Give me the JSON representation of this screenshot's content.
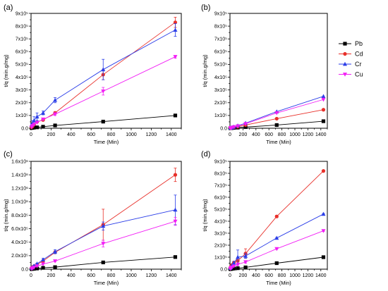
{
  "colors": {
    "Pb": "#000000",
    "Cd": "#e8302a",
    "Cr": "#2b3ee8",
    "Cu": "#f21ef5"
  },
  "legend": {
    "entries": [
      "Pb",
      "Cd",
      "Cr",
      "Cu"
    ],
    "placement": "right of panel (b)"
  },
  "chart_data": [
    {
      "panel": "(a)",
      "type": "line",
      "xlabel": "Time (Min)",
      "ylabel": "t/q (min.g/mg)",
      "xlim": [
        0,
        1500
      ],
      "ylim": [
        0,
        900000
      ],
      "xticks": [
        "0",
        "200",
        "400",
        "600",
        "800",
        "1000",
        "1200",
        "1400"
      ],
      "yticks": [
        "0.0",
        "1x10⁵",
        "2x10⁵",
        "3x10⁵",
        "4x10⁵",
        "5x10⁵",
        "6x10⁵",
        "7x10⁵",
        "8x10⁵",
        "9x10⁵"
      ],
      "x": [
        5,
        15,
        30,
        60,
        120,
        240,
        720,
        1440
      ],
      "series": [
        {
          "name": "Pb",
          "marker": "square",
          "values": [
            2000,
            3000,
            5000,
            7000,
            12000,
            22000,
            52000,
            100000
          ],
          "errors": [
            0,
            0,
            0,
            0,
            0,
            0,
            0,
            0
          ]
        },
        {
          "name": "Cd",
          "marker": "circle",
          "values": [
            8000,
            15000,
            30000,
            50000,
            65000,
            120000,
            420000,
            830000
          ],
          "errors": [
            0,
            0,
            0,
            0,
            0,
            10000,
            40000,
            40000
          ]
        },
        {
          "name": "Cr",
          "marker": "triangle-up",
          "values": [
            25000,
            40000,
            60000,
            90000,
            120000,
            220000,
            460000,
            770000
          ],
          "errors": [
            10000,
            20000,
            30000,
            30000,
            15000,
            20000,
            80000,
            50000
          ]
        },
        {
          "name": "Cu",
          "marker": "triangle-down",
          "values": [
            10000,
            20000,
            30000,
            45000,
            70000,
            110000,
            290000,
            560000
          ],
          "errors": [
            0,
            0,
            0,
            0,
            0,
            10000,
            30000,
            10000
          ]
        }
      ]
    },
    {
      "panel": "(b)",
      "type": "line",
      "xlabel": "Time (Min)",
      "ylabel": "t/q (min.g/mg)",
      "xlim": [
        0,
        1500
      ],
      "ylim": [
        0,
        900000
      ],
      "xticks": [
        "0",
        "200",
        "400",
        "600",
        "800",
        "1000",
        "1200",
        "1400"
      ],
      "yticks": [
        "0.0",
        "1x10⁵",
        "2x10⁵",
        "3x10⁵",
        "4x10⁵",
        "5x10⁵",
        "6x10⁵",
        "7x10⁵",
        "8x10⁵",
        "9x10⁵"
      ],
      "x": [
        5,
        15,
        30,
        60,
        120,
        240,
        720,
        1440
      ],
      "series": [
        {
          "name": "Pb",
          "marker": "square",
          "values": [
            500,
            800,
            1500,
            3000,
            5000,
            9000,
            25000,
            55000
          ],
          "errors": [
            0,
            0,
            0,
            0,
            0,
            0,
            0,
            0
          ]
        },
        {
          "name": "Cd",
          "marker": "circle",
          "values": [
            1000,
            2000,
            4000,
            7000,
            12000,
            25000,
            75000,
            145000
          ],
          "errors": [
            0,
            0,
            0,
            0,
            0,
            0,
            0,
            0
          ]
        },
        {
          "name": "Cr",
          "marker": "triangle-up",
          "values": [
            1500,
            3000,
            6000,
            11000,
            20000,
            40000,
            130000,
            250000
          ],
          "errors": [
            0,
            0,
            0,
            0,
            0,
            0,
            0,
            0
          ]
        },
        {
          "name": "Cu",
          "marker": "triangle-down",
          "values": [
            1500,
            3000,
            5000,
            10000,
            17000,
            35000,
            120000,
            225000
          ],
          "errors": [
            0,
            0,
            0,
            0,
            0,
            0,
            0,
            0
          ]
        }
      ]
    },
    {
      "panel": "(c)",
      "type": "line",
      "xlabel": "Time (Min)",
      "ylabel": "t/q (min.g/mg)",
      "xlim": [
        0,
        1500
      ],
      "ylim": [
        0,
        1600000
      ],
      "xticks": [
        "0",
        "200",
        "400",
        "600",
        "800",
        "1000",
        "1200",
        "1400"
      ],
      "yticks": [
        "0.0",
        "2.0x10⁵",
        "4.0x10⁵",
        "6.0x10⁵",
        "8.0x10⁵",
        "1.0x10⁶",
        "1.2x10⁶",
        "1.4x10⁶",
        "1.6x10⁶"
      ],
      "x": [
        5,
        15,
        30,
        60,
        120,
        240,
        720,
        1440
      ],
      "series": [
        {
          "name": "Pb",
          "marker": "square",
          "values": [
            2000,
            4000,
            6000,
            10000,
            20000,
            30000,
            100000,
            180000
          ],
          "errors": [
            0,
            0,
            0,
            0,
            0,
            0,
            0,
            10000
          ]
        },
        {
          "name": "Cd",
          "marker": "circle",
          "values": [
            15000,
            30000,
            45000,
            70000,
            120000,
            250000,
            660000,
            1400000
          ],
          "errors": [
            0,
            0,
            0,
            10000,
            20000,
            20000,
            230000,
            100000
          ]
        },
        {
          "name": "Cr",
          "marker": "triangle-up",
          "values": [
            15000,
            30000,
            50000,
            80000,
            140000,
            260000,
            640000,
            880000
          ],
          "errors": [
            0,
            0,
            0,
            10000,
            20000,
            30000,
            60000,
            220000
          ]
        },
        {
          "name": "Cu",
          "marker": "triangle-down",
          "values": [
            8000,
            15000,
            25000,
            45000,
            75000,
            120000,
            380000,
            710000
          ],
          "errors": [
            0,
            0,
            0,
            0,
            0,
            10000,
            50000,
            60000
          ]
        }
      ]
    },
    {
      "panel": "(d)",
      "type": "line",
      "xlabel": "Time (Min)",
      "ylabel": "t/q (min.g/mg)",
      "xlim": [
        0,
        1500
      ],
      "ylim": [
        0,
        900000
      ],
      "xticks": [
        "0",
        "200",
        "400",
        "600",
        "800",
        "1000",
        "1200",
        "1400"
      ],
      "yticks": [
        "0.0",
        "1x10⁵",
        "2x10⁵",
        "3x10⁵",
        "4x10⁵",
        "5x10⁵",
        "6x10⁵",
        "7x10⁵",
        "8x10⁵",
        "9x10⁵"
      ],
      "x": [
        5,
        15,
        30,
        60,
        120,
        240,
        720,
        1440
      ],
      "series": [
        {
          "name": "Pb",
          "marker": "square",
          "values": [
            1000,
            2000,
            3000,
            5000,
            8000,
            15000,
            50000,
            100000
          ],
          "errors": [
            0,
            0,
            0,
            0,
            0,
            0,
            0,
            0
          ]
        },
        {
          "name": "Cd",
          "marker": "circle",
          "values": [
            10000,
            20000,
            35000,
            55000,
            70000,
            130000,
            440000,
            820000
          ],
          "errors": [
            0,
            0,
            0,
            10000,
            20000,
            40000,
            10000,
            5000
          ]
        },
        {
          "name": "Cr",
          "marker": "triangle-up",
          "values": [
            8000,
            15000,
            30000,
            50000,
            100000,
            110000,
            260000,
            460000
          ],
          "errors": [
            0,
            0,
            0,
            15000,
            60000,
            20000,
            5000,
            5000
          ]
        },
        {
          "name": "Cu",
          "marker": "triangle-down",
          "values": [
            5000,
            10000,
            15000,
            25000,
            40000,
            60000,
            170000,
            320000
          ],
          "errors": [
            0,
            0,
            0,
            0,
            10000,
            10000,
            5000,
            5000
          ]
        }
      ]
    }
  ]
}
